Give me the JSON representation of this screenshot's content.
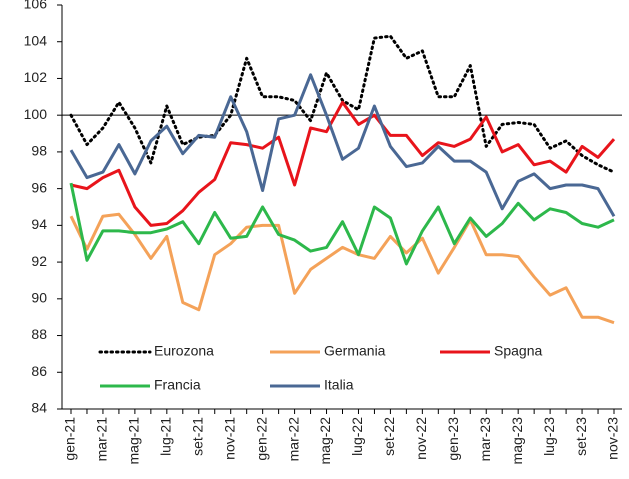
{
  "chart_data": {
    "type": "line",
    "categories": [
      "gen-21",
      null,
      "mar-21",
      null,
      "mag-21",
      null,
      "lug-21",
      null,
      "set-21",
      null,
      "nov-21",
      null,
      "gen-22",
      null,
      "mar-22",
      null,
      "mag-22",
      null,
      "lug-22",
      null,
      "set-22",
      null,
      "nov-22",
      null,
      "gen-23",
      null,
      "mar-23",
      null,
      "mag-23",
      null,
      "lug-23",
      null,
      "set-23",
      null,
      "nov-23"
    ],
    "series": [
      {
        "name": "Eurozona",
        "color": "#000000",
        "dash": "dotted",
        "values": [
          100,
          98.4,
          99.3,
          100.7,
          99.3,
          97.4,
          100.5,
          98.4,
          98.8,
          98.9,
          100,
          103.1,
          101,
          101,
          100.8,
          99.7,
          102.3,
          100.8,
          100.3,
          104.2,
          104.3,
          103.1,
          103.5,
          101,
          101,
          102.7,
          98.3,
          99.5,
          99.6,
          99.5,
          98.2,
          98.6,
          97.8,
          97.3,
          96.9
        ]
      },
      {
        "name": "Germania",
        "color": "#f4a259",
        "values": [
          94.5,
          92.7,
          94.5,
          94.6,
          93.5,
          92.2,
          93.4,
          89.8,
          89.4,
          92.4,
          93,
          93.9,
          94,
          94,
          90.3,
          91.6,
          92.2,
          92.8,
          92.4,
          92.2,
          93.4,
          92.5,
          93.3,
          91.4,
          92.8,
          94.3,
          92.4,
          92.4,
          92.3,
          91.2,
          90.2,
          90.6,
          89,
          89,
          88.7
        ]
      },
      {
        "name": "Spagna",
        "color": "#e8141b",
        "values": [
          96.2,
          96,
          96.6,
          97,
          95,
          94,
          94.1,
          94.8,
          95.8,
          96.5,
          98.5,
          98.4,
          98.2,
          98.8,
          96.2,
          99.3,
          99.1,
          100.7,
          99.5,
          100,
          98.9,
          98.9,
          97.8,
          98.5,
          98.3,
          98.7,
          99.9,
          98,
          98.4,
          97.3,
          97.5,
          96.9,
          98.3,
          97.7,
          98.7
        ]
      },
      {
        "name": "Francia",
        "color": "#2db84b",
        "values": [
          96.3,
          92.1,
          93.7,
          93.7,
          93.6,
          93.6,
          93.8,
          94.2,
          93,
          94.7,
          93.3,
          93.4,
          95,
          93.5,
          93.2,
          92.6,
          92.8,
          94.2,
          92.4,
          95,
          94.4,
          91.9,
          93.7,
          95,
          93,
          94.4,
          93.4,
          94.1,
          95.2,
          94.3,
          94.9,
          94.7,
          94.1,
          93.9,
          94.3
        ]
      },
      {
        "name": "Italia",
        "color": "#4a6894",
        "values": [
          98.1,
          96.6,
          96.9,
          98.4,
          96.8,
          98.6,
          99.4,
          97.9,
          98.9,
          98.8,
          101,
          99.1,
          95.9,
          99.8,
          100,
          102.2,
          100,
          97.6,
          98.2,
          100.5,
          98.3,
          97.2,
          97.4,
          98.3,
          97.5,
          97.5,
          96.9,
          94.9,
          96.4,
          96.8,
          96,
          96.2,
          96.2,
          96,
          94.5
        ]
      }
    ],
    "reference_line": 100,
    "ylim": [
      84,
      106
    ],
    "yticks": [
      84,
      86,
      88,
      90,
      92,
      94,
      96,
      98,
      100,
      102,
      104,
      106
    ],
    "legend": "inside-bottom"
  }
}
